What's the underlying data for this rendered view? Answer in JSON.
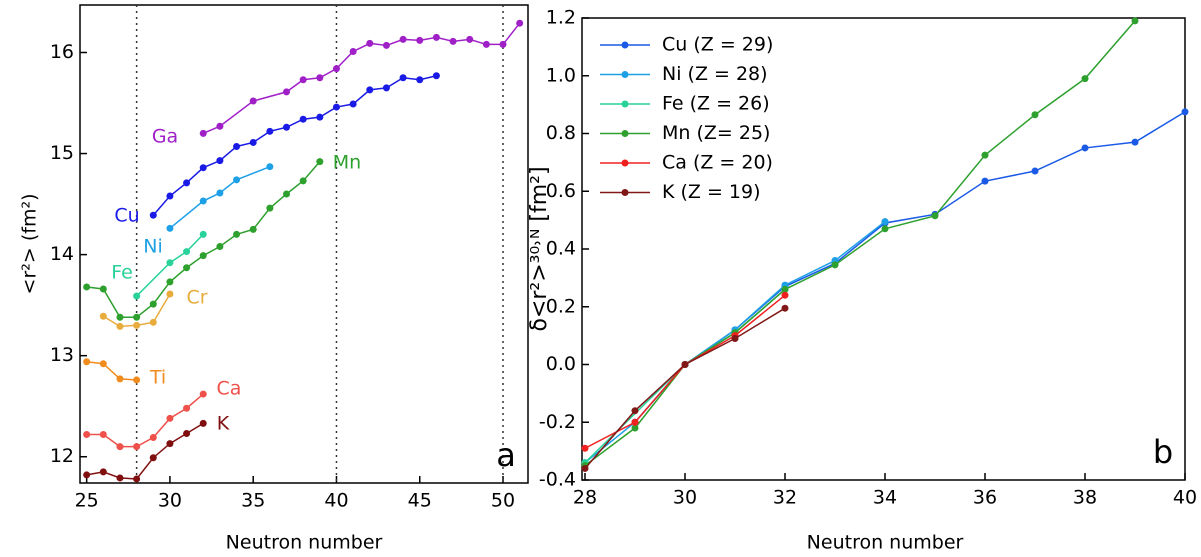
{
  "chart_data": [
    {
      "type": "line",
      "panel_label": "a",
      "x_label": "Neutron number",
      "y_label": "<r²> (fm²)",
      "xlim": [
        24.6,
        51.5
      ],
      "ylim": [
        11.74,
        16.47
      ],
      "xticks": [
        25,
        30,
        35,
        40,
        45,
        50
      ],
      "yticks": [
        12,
        13,
        14,
        15,
        16
      ],
      "vlines": [
        28,
        40,
        50
      ],
      "series": [
        {
          "name": "Ga",
          "color": "#a020c8",
          "x": [
            32,
            33,
            35,
            37,
            38,
            39,
            40,
            41,
            42,
            43,
            44,
            45,
            46,
            47,
            48,
            49,
            50,
            51
          ],
          "values": [
            15.2,
            15.27,
            15.52,
            15.61,
            15.73,
            15.75,
            15.84,
            16.01,
            16.09,
            16.07,
            16.13,
            16.12,
            16.15,
            16.11,
            16.13,
            16.08,
            16.08,
            16.29
          ]
        },
        {
          "name": "Cu",
          "color": "#1a1ae6",
          "x": [
            29,
            30,
            31,
            32,
            33,
            34,
            35,
            36,
            37,
            38,
            39,
            40,
            41,
            42,
            43,
            44,
            45,
            46
          ],
          "values": [
            14.39,
            14.58,
            14.71,
            14.86,
            14.93,
            15.07,
            15.11,
            15.22,
            15.26,
            15.34,
            15.36,
            15.46,
            15.49,
            15.63,
            15.65,
            15.75,
            15.73,
            15.77
          ]
        },
        {
          "name": "Ni",
          "color": "#1ea0e6",
          "x": [
            30,
            32,
            33,
            34,
            36
          ],
          "values": [
            14.26,
            14.53,
            14.61,
            14.74,
            14.87
          ]
        },
        {
          "name": "Fe",
          "color": "#28d29a",
          "x": [
            28,
            30,
            31,
            32
          ],
          "values": [
            13.59,
            13.92,
            14.03,
            14.2
          ]
        },
        {
          "name": "Mn",
          "color": "#2ea02e",
          "x": [
            25,
            26,
            27,
            28,
            29,
            30,
            31,
            32,
            33,
            34,
            35,
            36,
            37,
            38,
            39
          ],
          "values": [
            13.68,
            13.66,
            13.38,
            13.38,
            13.51,
            13.73,
            13.87,
            13.99,
            14.08,
            14.2,
            14.25,
            14.46,
            14.6,
            14.73,
            14.92
          ]
        },
        {
          "name": "Cr",
          "color": "#e8ac3c",
          "x": [
            26,
            27,
            28,
            29,
            30
          ],
          "values": [
            13.39,
            13.29,
            13.3,
            13.33,
            13.61
          ]
        },
        {
          "name": "Ti",
          "color": "#f08c1e",
          "x": [
            25,
            26,
            27,
            28
          ],
          "values": [
            12.94,
            12.92,
            12.77,
            12.76
          ]
        },
        {
          "name": "Ca",
          "color": "#f0504a",
          "x": [
            25,
            26,
            27,
            28,
            29,
            30,
            31,
            32
          ],
          "values": [
            12.22,
            12.22,
            12.1,
            12.1,
            12.19,
            12.38,
            12.48,
            12.62
          ]
        },
        {
          "name": "K",
          "color": "#801010",
          "x": [
            25,
            26,
            27,
            28,
            29,
            30,
            31,
            32
          ],
          "values": [
            11.82,
            11.85,
            11.79,
            11.78,
            11.99,
            12.13,
            12.23,
            12.33
          ]
        }
      ]
    },
    {
      "type": "line",
      "panel_label": "b",
      "x_label": "Neutron number",
      "y_label": "δ<r²>³⁰˒ᴺ [fm²]",
      "xlim": [
        28,
        40
      ],
      "ylim": [
        -0.4,
        1.2
      ],
      "xticks": [
        28,
        30,
        32,
        34,
        36,
        38,
        40
      ],
      "yticks": [
        -0.4,
        -0.2,
        {
          "value": 0,
          "label": "0.0"
        },
        0.2,
        0.4,
        0.6,
        0.8,
        {
          "value": 1,
          "label": "1.0"
        },
        1.2
      ],
      "legend": "upper left",
      "series": [
        {
          "name": "Cu (Z = 29)",
          "color": "#1a5ae6",
          "x": [
            29,
            30,
            31,
            32,
            33,
            34,
            35,
            36,
            37,
            38,
            39,
            40
          ],
          "values": [
            -0.2,
            0,
            0.12,
            0.27,
            0.35,
            0.49,
            0.52,
            0.635,
            0.67,
            0.75,
            0.77,
            0.875
          ]
        },
        {
          "name": "Ni (Z = 28)",
          "color": "#1ea0e6",
          "x": [
            28,
            29,
            30,
            31,
            32,
            33,
            34
          ],
          "values": [
            -0.34,
            -0.2,
            0,
            0.12,
            0.275,
            0.36,
            0.495
          ]
        },
        {
          "name": "Fe (Z = 26)",
          "color": "#28d29a",
          "x": [
            28,
            30,
            31,
            32
          ],
          "values": [
            -0.34,
            0,
            0.11,
            0.26
          ]
        },
        {
          "name": "Mn (Z= 25)",
          "color": "#2ea02e",
          "x": [
            28,
            29,
            30,
            31,
            32,
            33,
            34,
            35,
            36,
            37,
            38,
            39
          ],
          "values": [
            -0.35,
            -0.22,
            0,
            0.11,
            0.26,
            0.345,
            0.47,
            0.515,
            0.725,
            0.865,
            0.99,
            1.19
          ]
        },
        {
          "name": "Ca (Z = 20)",
          "color": "#f02020",
          "x": [
            28,
            29,
            30,
            31,
            32
          ],
          "values": [
            -0.29,
            -0.2,
            0,
            0.1,
            0.24
          ]
        },
        {
          "name": "K (Z = 19)",
          "color": "#801818",
          "x": [
            28,
            29,
            30,
            31,
            32
          ],
          "values": [
            -0.36,
            -0.16,
            0,
            0.09,
            0.195
          ]
        }
      ]
    }
  ]
}
